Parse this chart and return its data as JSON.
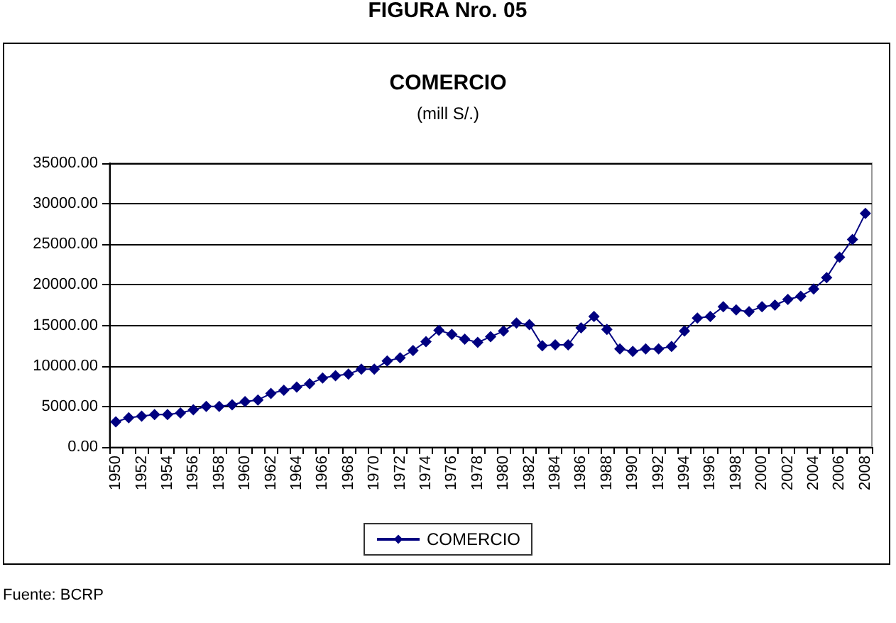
{
  "chart_data": {
    "type": "line",
    "title": "COMERCIO",
    "subtitle": "(mill S/.)",
    "annotations": [
      "FIGURA Nro. 05",
      "Fuente: BCRP"
    ],
    "categories": [
      "1950",
      null,
      "1952",
      null,
      "1954",
      null,
      "1956",
      null,
      "1958",
      null,
      "1960",
      null,
      "1962",
      null,
      "1964",
      null,
      "1966",
      null,
      "1968",
      null,
      "1970",
      null,
      "1972",
      null,
      "1974",
      null,
      "1976",
      null,
      "1978",
      null,
      "1980",
      null,
      "1982",
      null,
      "1984",
      null,
      "1986",
      null,
      "1988",
      null,
      "1990",
      null,
      "1992",
      null,
      "1994",
      null,
      "1996",
      null,
      "1998",
      null,
      "2000",
      null,
      "2002",
      null,
      "2004",
      null,
      "2006",
      null,
      "2008"
    ],
    "series": [
      {
        "name": "COMERCIO",
        "color": "#000080",
        "values": [
          3100,
          3600,
          3800,
          4000,
          4000,
          4200,
          4600,
          5000,
          5000,
          5200,
          5600,
          5800,
          6600,
          7000,
          7400,
          7800,
          8500,
          8800,
          9000,
          9600,
          9600,
          10600,
          11000,
          11900,
          13000,
          14400,
          13900,
          13300,
          12900,
          13600,
          14300,
          15300,
          15100,
          12500,
          12600,
          12600,
          14700,
          16100,
          14500,
          12100,
          11800,
          12100,
          12100,
          12400,
          14300,
          15900,
          16100,
          17300,
          16900,
          16700,
          17300,
          17500,
          18200,
          18600,
          19500,
          20900,
          23400,
          25600,
          28800
        ]
      }
    ],
    "ylim": [
      0,
      35000
    ],
    "yticks": [
      {
        "value": 0,
        "label": "0.00"
      },
      {
        "value": 5000,
        "label": "5000.00"
      },
      {
        "value": 10000,
        "label": "10000.00"
      },
      {
        "value": 15000,
        "label": "15000.00"
      },
      {
        "value": 20000,
        "label": "20000.00"
      },
      {
        "value": 25000,
        "label": "25000.00"
      },
      {
        "value": 30000,
        "label": "30000.00"
      },
      {
        "value": 35000,
        "label": "35000.00"
      }
    ],
    "grid": "y",
    "legend": "bottom",
    "marker": "diamond",
    "line_style": "solid"
  }
}
